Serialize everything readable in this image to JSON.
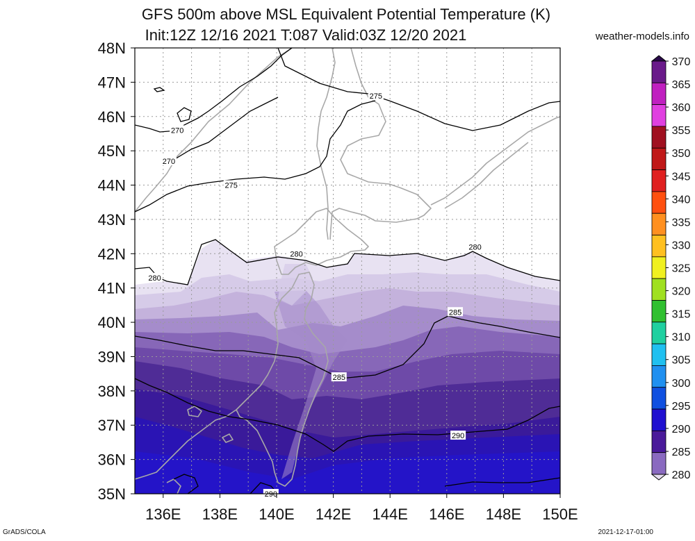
{
  "title_line1": "GFS 500m above MSL Equivalent Potential Temperature (K)",
  "title_line2": "Init:12Z 12/16 2021 T:087 Valid:03Z 12/20 2021",
  "site": "weather-models.info",
  "footer_left": "GrADS/COLA",
  "footer_right": "2021-12-17-01:00",
  "map": {
    "lon_range": [
      135,
      150
    ],
    "lat_range": [
      35,
      48
    ],
    "lat_labels": [
      "48N",
      "47N",
      "46N",
      "45N",
      "44N",
      "43N",
      "42N",
      "41N",
      "40N",
      "39N",
      "38N",
      "37N",
      "36N",
      "35N"
    ],
    "lon_labels": [
      "136E",
      "138E",
      "140E",
      "142E",
      "144E",
      "146E",
      "148E",
      "150E"
    ],
    "contour_labels": [
      {
        "text": "275",
        "lon": 143.5,
        "lat": 46.6
      },
      {
        "text": "270",
        "lon": 136.5,
        "lat": 45.6
      },
      {
        "text": "270",
        "lon": 136.2,
        "lat": 44.7
      },
      {
        "text": "275",
        "lon": 138.4,
        "lat": 44.0
      },
      {
        "text": "280",
        "lon": 135.7,
        "lat": 41.3
      },
      {
        "text": "280",
        "lon": 140.7,
        "lat": 42.0
      },
      {
        "text": "280",
        "lon": 147.0,
        "lat": 42.2
      },
      {
        "text": "285",
        "lon": 146.3,
        "lat": 40.3
      },
      {
        "text": "285",
        "lon": 142.2,
        "lat": 38.4
      },
      {
        "text": "290",
        "lon": 146.4,
        "lat": 36.7
      },
      {
        "text": "290",
        "lon": 139.8,
        "lat": 35.0
      }
    ]
  },
  "colorbar": {
    "levels": [
      "370",
      "365",
      "360",
      "355",
      "350",
      "345",
      "340",
      "335",
      "330",
      "325",
      "320",
      "315",
      "310",
      "305",
      "300",
      "295",
      "290",
      "285",
      "280"
    ],
    "colors": [
      "#2a0a4a",
      "#6a1a8a",
      "#c020c0",
      "#e040e0",
      "#a01020",
      "#c01818",
      "#e02020",
      "#ff5010",
      "#ff9020",
      "#ffc020",
      "#f0f020",
      "#a0e020",
      "#30c030",
      "#20d0a0",
      "#20c0f0",
      "#2090f0",
      "#1050e0",
      "#2010d0",
      "#4a1a9a",
      "#8a6ac0",
      "#e6def0"
    ]
  }
}
